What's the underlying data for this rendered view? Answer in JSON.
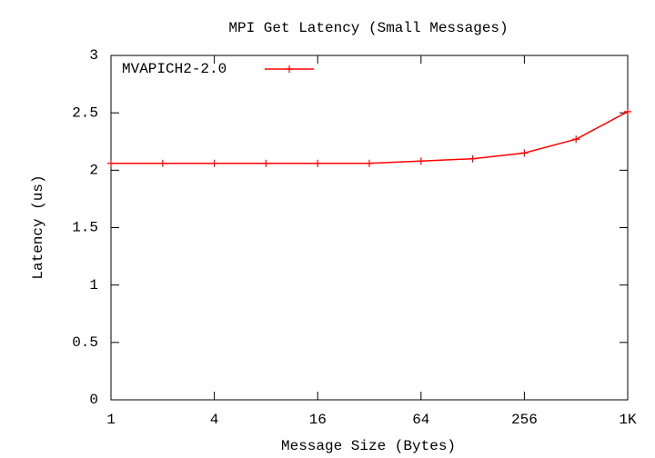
{
  "chart_data": {
    "type": "line",
    "title": "MPI Get Latency (Small Messages)",
    "xlabel": "Message Size (Bytes)",
    "ylabel": "Latency (us)",
    "x": [
      1,
      2,
      4,
      8,
      16,
      32,
      64,
      128,
      256,
      512,
      1024
    ],
    "series": [
      {
        "name": "MVAPICH2-2.0",
        "color": "#ff0000",
        "values": [
          2.06,
          2.06,
          2.06,
          2.06,
          2.06,
          2.06,
          2.08,
          2.1,
          2.15,
          2.27,
          2.51
        ]
      }
    ],
    "xscale": "log",
    "xlim": [
      1,
      1024
    ],
    "xticks": [
      1,
      4,
      16,
      64,
      256,
      {
        "value": 1024,
        "label": "1K"
      }
    ],
    "ylim": [
      0,
      3
    ],
    "yticks": [
      0,
      0.5,
      1,
      1.5,
      2,
      2.5,
      3
    ],
    "legend": "upper left"
  }
}
